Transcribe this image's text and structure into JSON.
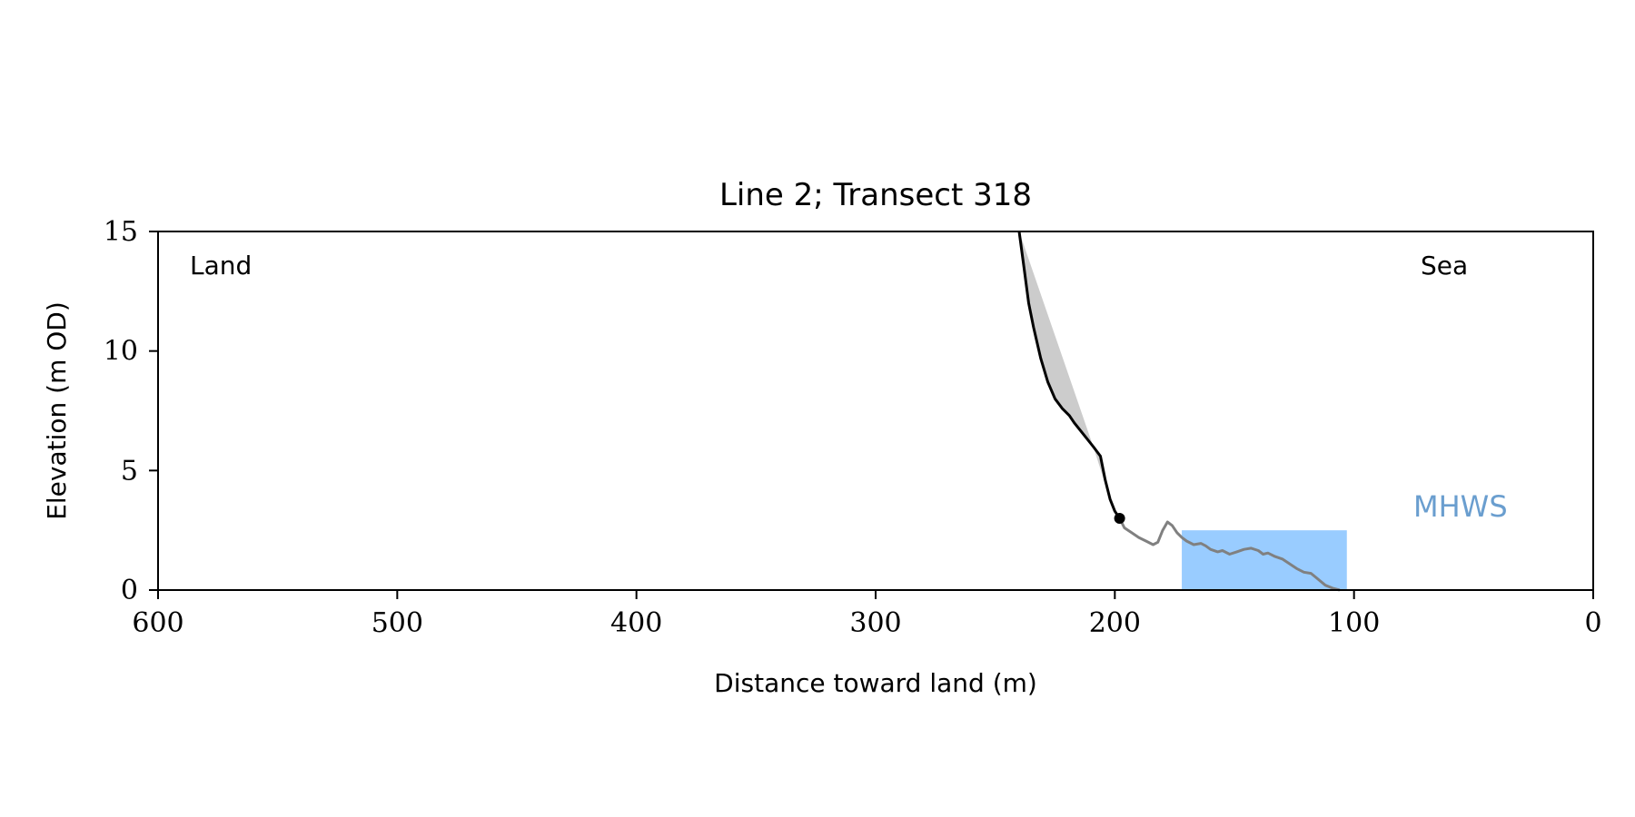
{
  "chart_data": {
    "type": "line",
    "title": "Line 2; Transect 318",
    "xlabel": "Distance toward land (m)",
    "ylabel": "Elevation (m OD)",
    "xlim": [
      600,
      0
    ],
    "ylim": [
      0,
      15
    ],
    "x_ticks": [
      600,
      500,
      400,
      300,
      200,
      100,
      0
    ],
    "y_ticks": [
      0,
      5,
      10,
      15
    ],
    "grid": false,
    "annotations": {
      "land": "Land",
      "sea": "Sea",
      "mhws": "MHWS"
    },
    "colors": {
      "cliff": "#000000",
      "beach": "#808080",
      "envelope": "#cccccc",
      "mhws_fill": "#99ccff",
      "mhws_text": "#6a9ecf"
    },
    "mhws_region": {
      "x_start": 172,
      "x_end": 103,
      "elevation": 2.5
    },
    "cliff_toe": {
      "x": 198,
      "y": 3.0
    },
    "series": [
      {
        "role": "cliff",
        "points": [
          [
            240,
            15.0
          ],
          [
            238,
            13.5
          ],
          [
            236,
            12.0
          ],
          [
            234,
            11.0
          ],
          [
            231,
            9.7
          ],
          [
            228,
            8.7
          ],
          [
            225,
            8.0
          ],
          [
            222,
            7.6
          ],
          [
            219,
            7.3
          ],
          [
            217,
            7.0
          ],
          [
            213,
            6.5
          ],
          [
            209,
            6.0
          ],
          [
            206,
            5.6
          ],
          [
            204,
            4.6
          ],
          [
            202,
            3.8
          ],
          [
            200,
            3.3
          ],
          [
            198,
            3.0
          ]
        ]
      },
      {
        "role": "beach",
        "points": [
          [
            198,
            3.0
          ],
          [
            196,
            2.6
          ],
          [
            193,
            2.4
          ],
          [
            190,
            2.2
          ],
          [
            187,
            2.05
          ],
          [
            184,
            1.9
          ],
          [
            182,
            2.0
          ],
          [
            180,
            2.5
          ],
          [
            178,
            2.85
          ],
          [
            176,
            2.7
          ],
          [
            174,
            2.4
          ],
          [
            172,
            2.2
          ],
          [
            170,
            2.05
          ],
          [
            167,
            1.9
          ],
          [
            164,
            1.95
          ],
          [
            162,
            1.85
          ],
          [
            160,
            1.7
          ],
          [
            157,
            1.6
          ],
          [
            155,
            1.65
          ],
          [
            152,
            1.5
          ],
          [
            149,
            1.6
          ],
          [
            146,
            1.7
          ],
          [
            143,
            1.75
          ],
          [
            140,
            1.65
          ],
          [
            138,
            1.5
          ],
          [
            136,
            1.55
          ],
          [
            133,
            1.4
          ],
          [
            130,
            1.3
          ],
          [
            127,
            1.1
          ],
          [
            124,
            0.9
          ],
          [
            121,
            0.75
          ],
          [
            118,
            0.7
          ],
          [
            115,
            0.45
          ],
          [
            112,
            0.2
          ],
          [
            109,
            0.08
          ],
          [
            106,
            0.0
          ]
        ]
      },
      {
        "role": "envelope",
        "points": [
          [
            240,
            15.0
          ],
          [
            209,
            6.0
          ],
          [
            202,
            3.8
          ],
          [
            198,
            3.0
          ]
        ]
      }
    ]
  }
}
